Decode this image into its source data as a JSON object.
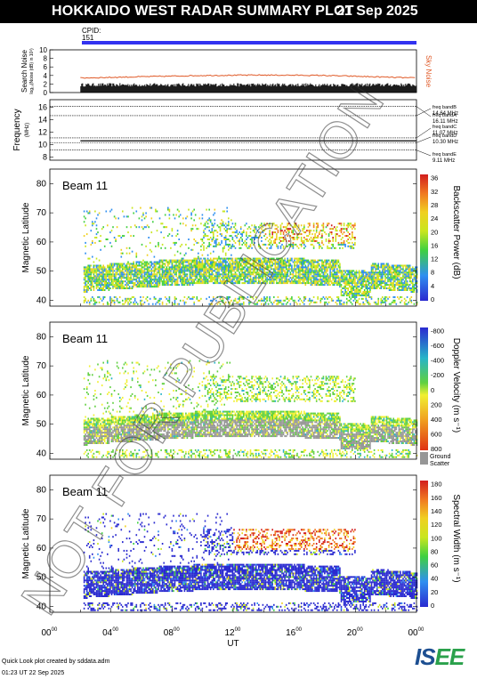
{
  "header": {
    "title": "HOKKAIDO WEST RADAR SUMMARY PLOT",
    "date": "21 Sep 2025"
  },
  "cpid": {
    "label": "CPID:",
    "value": "151"
  },
  "noise_panel": {
    "ylabel": "Search Noise",
    "ylabel_sub": "log₁₀(Noise (dB) in 10³)",
    "right_label": "Sky Noise",
    "yticks": [
      "0",
      "2",
      "4",
      "6",
      "8",
      "10"
    ]
  },
  "freq_panel": {
    "ylabel": "Frequency",
    "ylabel_unit": "(MHz)",
    "yticks": [
      "8",
      "10",
      "12",
      "14",
      "16"
    ],
    "bands": [
      {
        "label": "freq bandA",
        "value": "16.11 MHz"
      },
      {
        "label": "freq bandB",
        "value": "14.64 MHz"
      },
      {
        "label": "freq bandC",
        "value": "11.07 MHz"
      },
      {
        "label": "freq bandD",
        "value": "10.30 MHz"
      },
      {
        "label": "freq bandE",
        "value": "9.11 MHz"
      }
    ]
  },
  "panels": [
    {
      "beam": "Beam 11",
      "ylabel": "Magnetic Latitude",
      "cbar_label": "Backscatter Power (dB)",
      "cbar_ticks": [
        "0",
        "4",
        "8",
        "12",
        "16",
        "20",
        "24",
        "28",
        "32",
        "36"
      ]
    },
    {
      "beam": "Beam 11",
      "ylabel": "Magnetic Latitude",
      "cbar_label": "Doppler Velocity (m s⁻¹)",
      "cbar_ticks": [
        "800",
        "600",
        "400",
        "200",
        "0",
        "-200",
        "-400",
        "-600",
        "-800"
      ],
      "ground_label_1": "Ground",
      "ground_label_2": "Scatter"
    },
    {
      "beam": "Beam 11",
      "ylabel": "Magnetic Latitude",
      "cbar_label": "Spectral Width (m s⁻¹)",
      "cbar_ticks": [
        "0",
        "20",
        "40",
        "60",
        "80",
        "100",
        "120",
        "140",
        "160",
        "180"
      ]
    }
  ],
  "lat_ticks": [
    "40",
    "50",
    "60",
    "70",
    "80"
  ],
  "x_axis": {
    "label": "UT",
    "ticks": [
      "00",
      "04",
      "08",
      "12",
      "16",
      "20",
      "00"
    ],
    "tick_sup": "00"
  },
  "watermark": "NOT FOR PUBLICATION",
  "footer": {
    "line1": "Quick Look plot created by sddata.adm",
    "line2": "01:23 UT 22 Sep 2025"
  },
  "logo": {
    "part1": "IS",
    "part2": "EE"
  },
  "chart_data": [
    {
      "type": "line",
      "title": "Search Noise",
      "x_range": [
        0,
        24
      ],
      "ylim": [
        0,
        10
      ],
      "series": [
        {
          "name": "Sky Noise",
          "x": [
            2,
            6,
            10,
            14,
            18,
            22,
            24
          ],
          "values": [
            3.4,
            3.7,
            4.0,
            4.1,
            4.0,
            3.6,
            3.4
          ]
        }
      ]
    },
    {
      "type": "line",
      "title": "Frequency",
      "x_range": [
        0,
        24
      ],
      "ylim": [
        8,
        17
      ],
      "series": [
        {
          "name": "freq bandA",
          "values": [
            16.11
          ]
        },
        {
          "name": "freq bandB",
          "values": [
            14.64
          ]
        },
        {
          "name": "freq bandC",
          "values": [
            11.07
          ]
        },
        {
          "name": "freq bandD",
          "values": [
            10.3
          ]
        },
        {
          "name": "freq bandE",
          "values": [
            9.11
          ]
        }
      ]
    },
    {
      "type": "heatmap",
      "title": "Backscatter Power (dB)",
      "x_range": [
        0,
        24
      ],
      "ylim": [
        38,
        85
      ],
      "crange": [
        0,
        36
      ]
    },
    {
      "type": "heatmap",
      "title": "Doppler Velocity (m s-1)",
      "x_range": [
        0,
        24
      ],
      "ylim": [
        38,
        85
      ],
      "crange": [
        -800,
        800
      ]
    },
    {
      "type": "heatmap",
      "title": "Spectral Width (m s-1)",
      "x_range": [
        0,
        24
      ],
      "ylim": [
        38,
        85
      ],
      "crange": [
        0,
        180
      ]
    }
  ]
}
